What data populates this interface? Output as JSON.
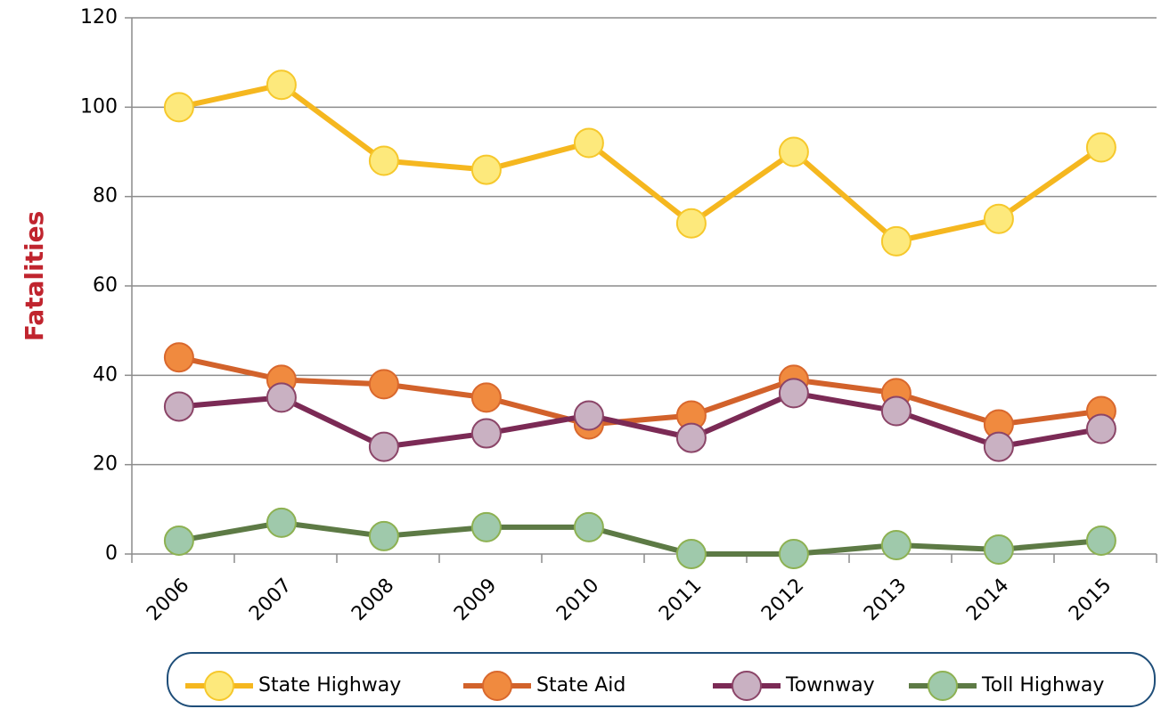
{
  "chart_data": {
    "type": "line",
    "y_label": "Fatalities",
    "categories": [
      "2006",
      "2007",
      "2008",
      "2009",
      "2010",
      "2011",
      "2012",
      "2013",
      "2014",
      "2015"
    ],
    "series": [
      {
        "name": "State Highway",
        "color": "#f5b71f",
        "marker_color": "#fde97c",
        "marker_stroke": "#f6c82c",
        "values": [
          100,
          105,
          88,
          86,
          92,
          74,
          90,
          70,
          75,
          91
        ]
      },
      {
        "name": "State Aid",
        "color": "#d2622b",
        "marker_color": "#f08a3f",
        "marker_stroke": "#d9682d",
        "values": [
          44,
          39,
          38,
          35,
          29,
          31,
          39,
          36,
          29,
          32
        ]
      },
      {
        "name": "Townway",
        "color": "#7b2a55",
        "marker_color": "#c9b1c2",
        "marker_stroke": "#8b4568",
        "values": [
          33,
          35,
          24,
          27,
          31,
          26,
          36,
          32,
          24,
          28
        ]
      },
      {
        "name": "Toll Highway",
        "color": "#5d7a45",
        "marker_color": "#9fc9ab",
        "marker_stroke": "#8db152",
        "values": [
          3,
          7,
          4,
          6,
          6,
          0,
          0,
          2,
          1,
          3
        ]
      }
    ],
    "ylim": [
      0,
      120
    ],
    "yticks": [
      0,
      20,
      40,
      60,
      80,
      100,
      120
    ],
    "grid": true,
    "legend": "bottom"
  }
}
